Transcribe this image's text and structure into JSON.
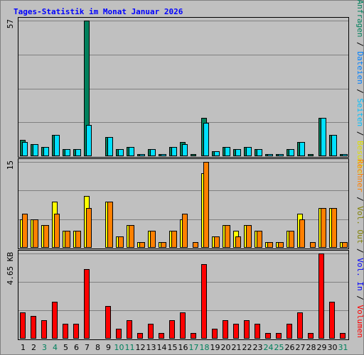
{
  "chart_data": {
    "type": "bar",
    "title": "Tages-Statistik im Monat Januar 2026",
    "categories": [
      "1",
      "2",
      "3",
      "4",
      "5",
      "6",
      "7",
      "8",
      "9",
      "10",
      "11",
      "12",
      "13",
      "14",
      "15",
      "16",
      "17",
      "18",
      "19",
      "20",
      "21",
      "22",
      "23",
      "24",
      "25",
      "26",
      "27",
      "28",
      "29",
      "30",
      "31"
    ],
    "weekend_days": [
      "3",
      "4",
      "10",
      "11",
      "17",
      "18",
      "24",
      "25",
      "31"
    ],
    "grid": true,
    "panels": [
      {
        "id": "requests",
        "max_label": "57",
        "ylim": [
          0,
          57
        ],
        "series": [
          {
            "name": "Anfragen",
            "color": "#00805c",
            "values": [
              7,
              5,
              4,
              9,
              3,
              3,
              57,
              0,
              8,
              3,
              4,
              1,
              3,
              1,
              4,
              6,
              1,
              16,
              2,
              4,
              3,
              4,
              3,
              1,
              1,
              3,
              6,
              1,
              16,
              9,
              1
            ]
          },
          {
            "name": "Dateien",
            "color": "#00e0ff",
            "values": [
              6,
              5,
              4,
              9,
              3,
              3,
              13,
              0,
              8,
              3,
              4,
              1,
              3,
              1,
              4,
              5,
              0,
              14,
              2,
              4,
              3,
              4,
              3,
              1,
              1,
              3,
              6,
              0,
              16,
              9,
              1
            ]
          },
          {
            "name": "Seiten",
            "color": "#00c0ff",
            "values": [
              0,
              0,
              0,
              0,
              0,
              0,
              0,
              0,
              0,
              0,
              0,
              0,
              0,
              0,
              0,
              0,
              0,
              0,
              0,
              0,
              0,
              0,
              0,
              0,
              0,
              0,
              0,
              0,
              0,
              0,
              0
            ]
          }
        ]
      },
      {
        "id": "visits",
        "max_label": "15",
        "ylim": [
          0,
          15
        ],
        "series": [
          {
            "name": "Besuche",
            "color": "#ffff00",
            "values": [
              5,
              5,
              4,
              8,
              3,
              3,
              9,
              0,
              8,
              2,
              4,
              1,
              3,
              1,
              3,
              5,
              0,
              13,
              2,
              4,
              3,
              4,
              3,
              1,
              1,
              3,
              6,
              0,
              7,
              7,
              1
            ]
          },
          {
            "name": "Rechner",
            "color": "#ff8000",
            "values": [
              6,
              5,
              4,
              6,
              3,
              3,
              7,
              0,
              8,
              2,
              4,
              1,
              3,
              1,
              3,
              6,
              1,
              15,
              2,
              4,
              2,
              4,
              3,
              1,
              1,
              3,
              5,
              1,
              7,
              7,
              1
            ]
          }
        ]
      },
      {
        "id": "volume",
        "max_label": "4.65 KB",
        "ylim": [
          0,
          4.65
        ],
        "series": [
          {
            "name": "Vol. Out",
            "color": "#808000",
            "values": [
              0,
              0,
              0,
              0,
              0,
              0,
              0,
              0,
              0,
              0,
              0,
              0,
              0,
              0,
              0,
              0,
              0,
              0,
              0,
              0,
              0,
              0,
              0,
              0,
              0,
              0,
              0,
              0,
              0,
              0,
              0
            ]
          },
          {
            "name": "Vol. In",
            "color": "#0000ff",
            "values": [
              0,
              0,
              0,
              0,
              0,
              0,
              0,
              0,
              0,
              0,
              0,
              0,
              0,
              0,
              0,
              0,
              0,
              0,
              0,
              0,
              0,
              0,
              0,
              0,
              0,
              0,
              0,
              0,
              0,
              0,
              0
            ]
          },
          {
            "name": "Volumen",
            "color": "#ff0000",
            "values": [
              1.45,
              1.25,
              1.0,
              2.0,
              0.8,
              0.8,
              3.8,
              0,
              1.8,
              0.55,
              1.0,
              0.3,
              0.8,
              0.3,
              1.0,
              1.45,
              0.3,
              4.05,
              0.55,
              1.0,
              0.8,
              1.0,
              0.8,
              0.3,
              0.3,
              0.8,
              1.45,
              0.3,
              4.65,
              2.0,
              0.3
            ]
          }
        ]
      }
    ],
    "right_labels": {
      "top": [
        {
          "text": "Anfragen",
          "color": "#00805c"
        },
        {
          "text": "Dateien",
          "color": "#0080ff"
        },
        {
          "text": "Seiten",
          "color": "#00c0ff"
        },
        {
          "text": "Besuche",
          "color": "#e0e000"
        }
      ],
      "bottom": [
        {
          "text": "Rechner",
          "color": "#ff8000"
        },
        {
          "text": "Vol. Out",
          "color": "#808000"
        },
        {
          "text": "Vol. In",
          "color": "#0000ff"
        },
        {
          "text": "Volumen",
          "color": "#ff0000"
        }
      ],
      "separator": " / ",
      "separator_color": "#000000"
    },
    "day_label_colors": {
      "weekday": "#000000",
      "weekend": "#00805c"
    }
  }
}
